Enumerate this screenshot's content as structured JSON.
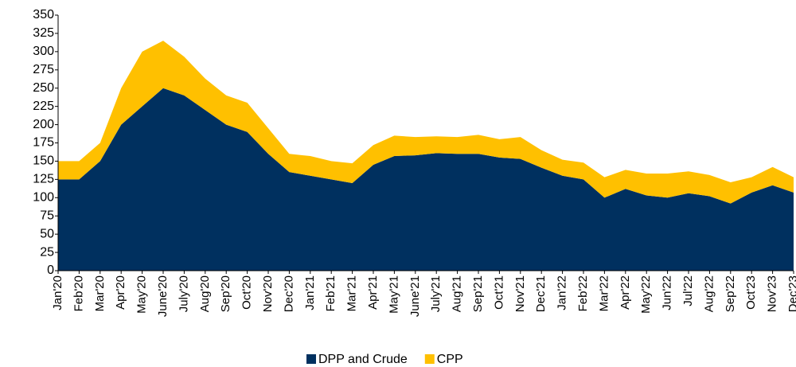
{
  "chart_data": {
    "type": "stacked_area",
    "categories": [
      "Jan'20",
      "Feb'20",
      "Mar'20",
      "Apr'20",
      "May'20",
      "June'20",
      "July'20",
      "Aug'20",
      "Sep'20",
      "Oct'20",
      "Nov'20",
      "Dec'20",
      "Jan'21",
      "Feb'21",
      "Mar'21",
      "Apr'21",
      "May'21",
      "June'21",
      "July'21",
      "Aug'21",
      "Sep'21",
      "Oct'21",
      "Nov'21",
      "Dec'21",
      "Jan'22",
      "Feb'22",
      "Mar'22",
      "Apr'22",
      "May'22",
      "Jun'22",
      "Jul'22",
      "Aug'22",
      "Sep'22",
      "Oct'23",
      "Nov'23",
      "Dec'23"
    ],
    "series": [
      {
        "name": "DPP and Crude",
        "color": "#00305f",
        "values": [
          125,
          125,
          150,
          200,
          225,
          250,
          240,
          220,
          200,
          190,
          160,
          135,
          130,
          125,
          120,
          145,
          157,
          158,
          161,
          160,
          160,
          155,
          153,
          141,
          130,
          125,
          100,
          112,
          103,
          100,
          106,
          102,
          92,
          107,
          117,
          107
        ]
      },
      {
        "name": "CPP",
        "color": "#ffc000",
        "values": [
          25,
          25,
          25,
          50,
          75,
          65,
          53,
          43,
          40,
          40,
          35,
          25,
          27,
          25,
          27,
          27,
          28,
          25,
          23,
          23,
          26,
          25,
          30,
          24,
          22,
          23,
          28,
          26,
          30,
          33,
          30,
          29,
          29,
          21,
          25,
          21
        ]
      }
    ],
    "ylim": [
      0,
      350
    ],
    "yticks": [
      0,
      25,
      50,
      75,
      100,
      125,
      150,
      175,
      200,
      225,
      250,
      275,
      300,
      325,
      350
    ],
    "legend": "bottom"
  }
}
